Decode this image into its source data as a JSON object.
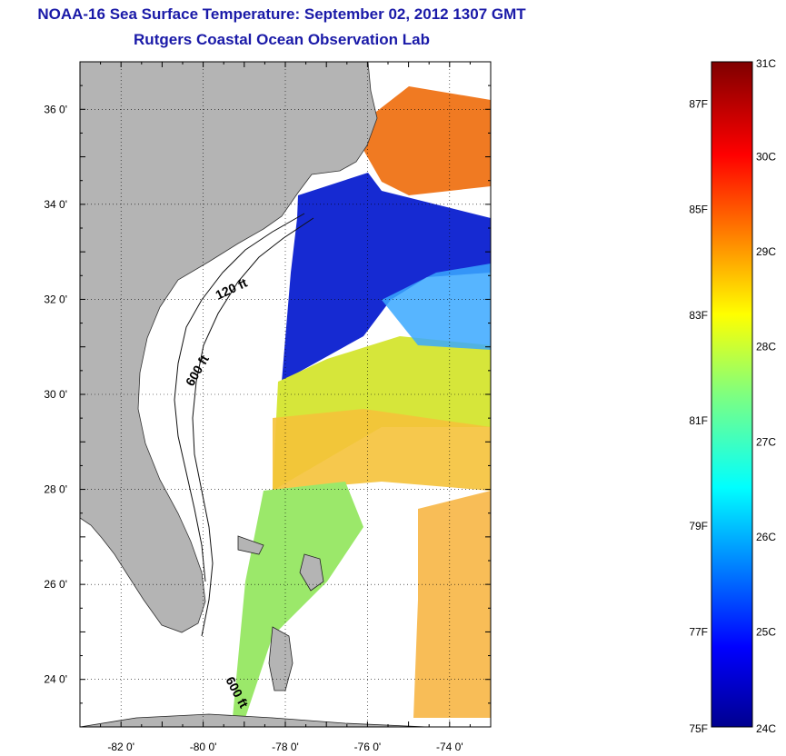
{
  "title": "NOAA-16 Sea Surface Temperature:  September 02, 2012 1307 GMT",
  "subtitle": "Rutgers Coastal Ocean Observation Lab",
  "map": {
    "lon_range": [
      -83,
      -73
    ],
    "lat_range": [
      23,
      37
    ],
    "lon_ticks": [
      {
        "value": -82,
        "label": "-82 0'"
      },
      {
        "value": -80,
        "label": "-80 0'"
      },
      {
        "value": -78,
        "label": "-78 0'"
      },
      {
        "value": -76,
        "label": "-76 0'"
      },
      {
        "value": -74,
        "label": "-74 0'"
      }
    ],
    "lat_ticks": [
      {
        "value": 36,
        "label": "36 0'"
      },
      {
        "value": 34,
        "label": "34 0'"
      },
      {
        "value": 32,
        "label": "32 0'"
      },
      {
        "value": 30,
        "label": "30 0'"
      },
      {
        "value": 28,
        "label": "28 0'"
      },
      {
        "value": 26,
        "label": "26 0'"
      },
      {
        "value": 24,
        "label": "24 0'"
      }
    ],
    "grid": "dotted",
    "depth_labels": [
      "120 ft",
      "600 ft",
      "600 ft"
    ],
    "land_color": "#b4b4b4"
  },
  "colorbar": {
    "min_c": 24,
    "max_c": 31,
    "celsius_labels": [
      "31C",
      "30C",
      "29C",
      "28C",
      "27C",
      "26C",
      "25C",
      "24C"
    ],
    "fahrenheit_labels": [
      "87F",
      "85F",
      "83F",
      "81F",
      "79F",
      "77F",
      "75F"
    ],
    "colormap": "jet"
  }
}
